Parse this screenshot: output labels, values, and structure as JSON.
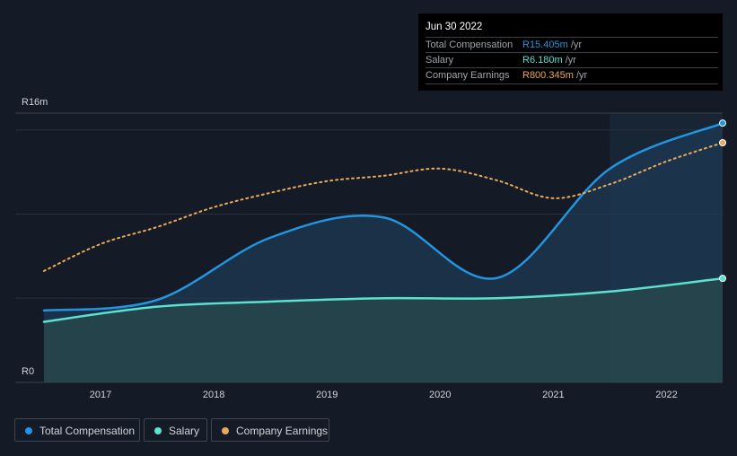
{
  "tooltip": {
    "date": "Jun 30 2022",
    "rows": [
      {
        "label": "Total Compensation",
        "value": "R15.405m",
        "unit": "/yr",
        "color": "#2394df"
      },
      {
        "label": "Salary",
        "value": "R6.180m",
        "unit": "/yr",
        "color": "#5ce0cf"
      },
      {
        "label": "Company Earnings",
        "value": "R800.345m",
        "unit": "/yr",
        "color": "#e9a85a"
      }
    ]
  },
  "legend": [
    {
      "label": "Total Compensation",
      "color": "#2394df"
    },
    {
      "label": "Salary",
      "color": "#5ce0cf"
    },
    {
      "label": "Company Earnings",
      "color": "#e9a85a"
    }
  ],
  "chart_data": {
    "type": "line",
    "ylim": [
      0,
      16
    ],
    "ylabel_top": "R16m",
    "ylabel_bottom": "R0",
    "yunit": "R m",
    "xticks": [
      "2017",
      "2018",
      "2019",
      "2020",
      "2021",
      "2022"
    ],
    "forecast_start": 2021.5,
    "series": [
      {
        "name": "Total Compensation",
        "x": [
          2016.5,
          2017.5,
          2018.5,
          2019.5,
          2020.5,
          2021.5,
          2022.5
        ],
        "values": [
          4.27,
          4.9,
          8.6,
          9.8,
          6.2,
          12.7,
          15.405
        ]
      },
      {
        "name": "Salary",
        "x": [
          2016.5,
          2017.5,
          2018.5,
          2019.5,
          2020.5,
          2021.5,
          2022.5
        ],
        "values": [
          3.6,
          4.5,
          4.8,
          5.0,
          5.0,
          5.4,
          6.18
        ]
      },
      {
        "name": "Company Earnings",
        "axis": "secondary",
        "x": [
          2016.5,
          2017,
          2017.5,
          2018,
          2018.5,
          2019,
          2019.5,
          2020,
          2020.5,
          2021,
          2021.5,
          2022,
          2022.5
        ],
        "values": [
          372,
          462,
          519,
          585,
          633,
          672,
          690,
          714,
          675,
          615,
          662,
          738,
          800.345
        ]
      }
    ]
  }
}
